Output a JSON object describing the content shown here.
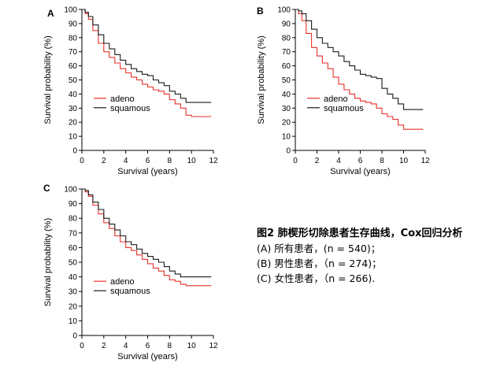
{
  "caption": {
    "title": "图2 肺楔形切除患者生存曲线，Cox回归分析",
    "lines": [
      "(A) 所有患者，(n = 540)；",
      "(B) 男性患者，（n = 274)；",
      "(C) 女性患者，（n = 266)."
    ]
  },
  "colors": {
    "adeno": "#e8312b",
    "squamous": "#1a1a1a"
  },
  "chart_data": [
    {
      "panel": "A",
      "type": "line",
      "xlabel": "Survival (years)",
      "ylabel": "Survival probability (%)",
      "xlim": [
        0,
        12
      ],
      "ylim": [
        0,
        100
      ],
      "xticks": [
        0,
        2,
        4,
        6,
        8,
        10,
        12
      ],
      "yticks": [
        0,
        10,
        20,
        30,
        40,
        50,
        60,
        70,
        80,
        90,
        100
      ],
      "legend_position": "lower-left",
      "grid": false,
      "series": [
        {
          "name": "adeno",
          "color": "#e8312b",
          "x": [
            0,
            0.3,
            0.6,
            1.0,
            1.5,
            2.0,
            2.5,
            3.0,
            3.5,
            4.0,
            4.5,
            5.0,
            5.5,
            6.0,
            6.5,
            7.0,
            7.5,
            8.0,
            8.5,
            9.0,
            9.5,
            10.0,
            11.8
          ],
          "y": [
            100,
            97,
            93,
            85,
            76,
            70,
            66,
            62,
            58,
            55,
            52,
            50,
            47,
            45,
            43,
            42,
            40,
            36,
            33,
            30,
            25,
            24,
            24
          ]
        },
        {
          "name": "squamous",
          "color": "#1a1a1a",
          "x": [
            0,
            0.3,
            0.6,
            1.0,
            1.5,
            2.0,
            2.5,
            3.0,
            3.5,
            4.0,
            4.5,
            5.0,
            5.5,
            6.0,
            6.5,
            7.0,
            7.5,
            8.0,
            8.5,
            9.0,
            9.5,
            10.0,
            11.8
          ],
          "y": [
            100,
            98,
            95,
            89,
            82,
            76,
            72,
            68,
            64,
            61,
            58,
            56,
            54,
            53,
            50,
            48,
            46,
            42,
            40,
            37,
            34,
            34,
            34
          ]
        }
      ]
    },
    {
      "panel": "B",
      "type": "line",
      "xlabel": "Survival (years)",
      "ylabel": "Survival probability (%)",
      "xlim": [
        0,
        12
      ],
      "ylim": [
        0,
        100
      ],
      "xticks": [
        0,
        2,
        4,
        6,
        8,
        10,
        12
      ],
      "yticks": [
        0,
        10,
        20,
        30,
        40,
        50,
        60,
        70,
        80,
        90,
        100
      ],
      "legend_position": "lower-left",
      "grid": false,
      "series": [
        {
          "name": "adeno",
          "color": "#e8312b",
          "x": [
            0,
            0.3,
            0.6,
            1.0,
            1.5,
            2.0,
            2.5,
            3.0,
            3.5,
            4.0,
            4.5,
            5.0,
            5.5,
            6.0,
            6.5,
            7.0,
            7.5,
            8.0,
            8.5,
            9.0,
            9.5,
            10.0,
            11.8
          ],
          "y": [
            100,
            97,
            92,
            83,
            73,
            67,
            62,
            58,
            52,
            47,
            43,
            40,
            37,
            35,
            34,
            33,
            30,
            26,
            24,
            22,
            18,
            15,
            15
          ]
        },
        {
          "name": "squamous",
          "color": "#1a1a1a",
          "x": [
            0,
            0.3,
            0.6,
            1.0,
            1.5,
            2.0,
            2.5,
            3.0,
            3.5,
            4.0,
            4.5,
            5.0,
            5.5,
            6.0,
            6.5,
            7.0,
            7.5,
            8.0,
            8.5,
            9.0,
            9.5,
            10.0,
            11.8
          ],
          "y": [
            100,
            99,
            97,
            92,
            86,
            80,
            76,
            73,
            70,
            67,
            63,
            60,
            57,
            54,
            53,
            52,
            51,
            44,
            40,
            37,
            33,
            29,
            29
          ]
        }
      ]
    },
    {
      "panel": "C",
      "type": "line",
      "xlabel": "Survival (years)",
      "ylabel": "Survival probability (%)",
      "xlim": [
        0,
        12
      ],
      "ylim": [
        0,
        100
      ],
      "xticks": [
        0,
        2,
        4,
        6,
        8,
        10,
        12
      ],
      "yticks": [
        0,
        10,
        20,
        30,
        40,
        50,
        60,
        70,
        80,
        90,
        100
      ],
      "legend_position": "lower-left",
      "grid": false,
      "series": [
        {
          "name": "adeno",
          "color": "#e8312b",
          "x": [
            0,
            0.3,
            0.6,
            1.0,
            1.5,
            2.0,
            2.5,
            3.0,
            3.5,
            4.0,
            4.5,
            5.0,
            5.5,
            6.0,
            6.5,
            7.0,
            7.5,
            8.0,
            8.5,
            9.0,
            9.5,
            10.0,
            11.8
          ],
          "y": [
            100,
            98,
            95,
            89,
            83,
            77,
            73,
            68,
            64,
            60,
            58,
            55,
            52,
            49,
            46,
            44,
            41,
            38,
            37,
            35,
            34,
            34,
            34
          ]
        },
        {
          "name": "squamous",
          "color": "#1a1a1a",
          "x": [
            0,
            0.3,
            0.6,
            1.0,
            1.5,
            2.0,
            2.5,
            3.0,
            3.5,
            4.0,
            4.5,
            5.0,
            5.5,
            6.0,
            6.5,
            7.0,
            7.5,
            8.0,
            8.5,
            9.0,
            9.5,
            10.0,
            11.8
          ],
          "y": [
            100,
            99,
            96,
            91,
            86,
            80,
            76,
            72,
            68,
            64,
            62,
            59,
            56,
            54,
            52,
            50,
            47,
            44,
            42,
            40,
            40,
            40,
            40
          ]
        }
      ]
    }
  ]
}
